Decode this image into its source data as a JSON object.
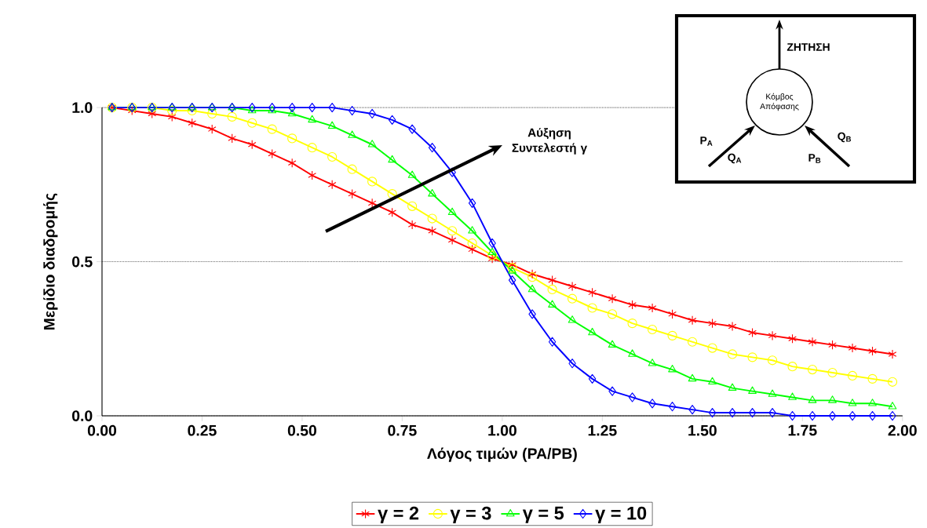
{
  "chart_data": {
    "type": "line",
    "xlabel": "Λόγος τιμών (PA/PB)",
    "ylabel": "Μερίδιο διαδρομής",
    "x": [
      0.025,
      0.075,
      0.125,
      0.175,
      0.225,
      0.275,
      0.325,
      0.375,
      0.425,
      0.475,
      0.525,
      0.575,
      0.625,
      0.675,
      0.725,
      0.775,
      0.825,
      0.875,
      0.925,
      0.975,
      1.025,
      1.075,
      1.125,
      1.175,
      1.225,
      1.275,
      1.325,
      1.375,
      1.425,
      1.475,
      1.525,
      1.575,
      1.625,
      1.675,
      1.725,
      1.775,
      1.825,
      1.875,
      1.925,
      1.975
    ],
    "series": [
      {
        "name": "γ = 2",
        "color": "#ff0000",
        "marker": "cross",
        "values": [
          1.0,
          0.99,
          0.98,
          0.97,
          0.95,
          0.93,
          0.9,
          0.88,
          0.85,
          0.82,
          0.78,
          0.75,
          0.72,
          0.69,
          0.66,
          0.62,
          0.6,
          0.57,
          0.54,
          0.51,
          0.49,
          0.46,
          0.44,
          0.42,
          0.4,
          0.38,
          0.36,
          0.35,
          0.33,
          0.31,
          0.3,
          0.29,
          0.27,
          0.26,
          0.25,
          0.24,
          0.23,
          0.22,
          0.21,
          0.2
        ]
      },
      {
        "name": "γ = 3",
        "color": "#ffff00",
        "marker": "circle",
        "values": [
          1.0,
          1.0,
          1.0,
          0.99,
          0.99,
          0.98,
          0.97,
          0.95,
          0.93,
          0.9,
          0.87,
          0.84,
          0.8,
          0.76,
          0.72,
          0.68,
          0.64,
          0.6,
          0.56,
          0.52,
          0.48,
          0.45,
          0.41,
          0.38,
          0.35,
          0.33,
          0.3,
          0.28,
          0.26,
          0.24,
          0.22,
          0.2,
          0.19,
          0.18,
          0.16,
          0.15,
          0.14,
          0.13,
          0.12,
          0.11
        ]
      },
      {
        "name": "γ = 5",
        "color": "#00ff00",
        "marker": "triangle",
        "values": [
          1.0,
          1.0,
          1.0,
          1.0,
          1.0,
          1.0,
          1.0,
          0.99,
          0.99,
          0.98,
          0.96,
          0.94,
          0.91,
          0.88,
          0.83,
          0.78,
          0.72,
          0.66,
          0.6,
          0.53,
          0.47,
          0.41,
          0.36,
          0.31,
          0.27,
          0.23,
          0.2,
          0.17,
          0.15,
          0.12,
          0.11,
          0.09,
          0.08,
          0.07,
          0.06,
          0.05,
          0.05,
          0.04,
          0.04,
          0.03
        ]
      },
      {
        "name": "γ = 10",
        "color": "#0000ff",
        "marker": "diamond",
        "values": [
          1.0,
          1.0,
          1.0,
          1.0,
          1.0,
          1.0,
          1.0,
          1.0,
          1.0,
          1.0,
          1.0,
          1.0,
          0.99,
          0.98,
          0.96,
          0.93,
          0.87,
          0.79,
          0.69,
          0.56,
          0.44,
          0.33,
          0.24,
          0.17,
          0.12,
          0.08,
          0.06,
          0.04,
          0.03,
          0.02,
          0.01,
          0.01,
          0.01,
          0.01,
          0.0,
          0.0,
          0.0,
          0.0,
          0.0,
          0.0
        ]
      }
    ],
    "xlim": [
      0,
      2
    ],
    "xticks": [
      {
        "value": 0,
        "label": "0.00"
      },
      {
        "value": 0.25,
        "label": "0.25"
      },
      {
        "value": 0.5,
        "label": "0.50"
      },
      {
        "value": 0.75,
        "label": "0.75"
      },
      {
        "value": 1,
        "label": "1.00"
      },
      {
        "value": 1.25,
        "label": "1.25"
      },
      {
        "value": 1.5,
        "label": "1.50"
      },
      {
        "value": 1.75,
        "label": "1.75"
      },
      {
        "value": 2,
        "label": "2.00"
      }
    ],
    "ylim": [
      0,
      1
    ],
    "yticks": [
      {
        "value": 0,
        "label": "0.0"
      },
      {
        "value": 0.5,
        "label": "0.5"
      },
      {
        "value": 1,
        "label": "1.0"
      }
    ],
    "grid": "y",
    "legend": "bottom",
    "line_style": "solid",
    "annotations": [
      "Αύξηση Συντελεστή γ",
      "ΖΗΤΗΣΗ",
      "Κόμβος Απόφασης",
      "P$_{A}$",
      "Q$_{A}$",
      "Q$_{B}$",
      "P$_{B}$"
    ]
  }
}
